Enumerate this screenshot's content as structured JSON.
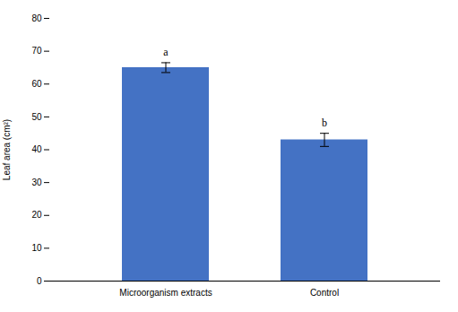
{
  "chart_data": {
    "type": "bar",
    "categories": [
      "Microorganism extracts",
      "Control"
    ],
    "values": [
      65.0,
      43.0
    ],
    "errors": [
      1.5,
      2.0
    ],
    "annotations": [
      "a",
      "b"
    ],
    "color": "#4472C4",
    "ylabel": "Leaf area (cm²)",
    "ylim": [
      0,
      80
    ],
    "yticks": [
      0,
      10,
      20,
      30,
      40,
      50,
      60,
      70,
      80
    ],
    "grid": false
  }
}
